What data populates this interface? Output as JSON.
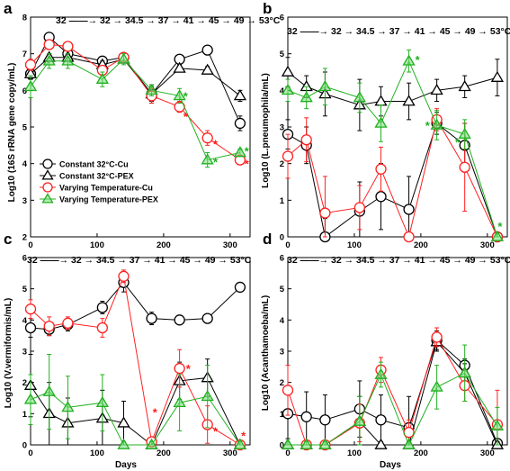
{
  "legend": [
    {
      "label": "Constant 32°C-Cu",
      "color": "#000000",
      "marker": "circle"
    },
    {
      "label": "Constant 32°C-PEX",
      "color": "#000000",
      "marker": "triangle"
    },
    {
      "label": "Varying Temperature-Cu",
      "color": "#ff2020",
      "marker": "circle"
    },
    {
      "label": "Varying Temperature-PEX",
      "color": "#20b020",
      "marker": "triangle"
    }
  ],
  "chart_data": [
    {
      "panel": "a",
      "type": "line",
      "ylabel": "Log10 (16S rRNA gene copy/mL)",
      "xlabel": "",
      "xticks": [
        0,
        100,
        200,
        300
      ],
      "yticks": [
        2,
        3,
        4,
        5,
        6,
        7,
        8
      ],
      "xlim": [
        0,
        330
      ],
      "ylim": [
        2,
        8
      ],
      "temperature_sequence": "32 ——→ 32 → 34.5 → 37 → 41 → 45 → 49 → 53°C",
      "series": [
        {
          "name": "Constant 32°C-Cu",
          "color": "#000000",
          "marker": "circle",
          "x": [
            0,
            28,
            56,
            108,
            140,
            182,
            224,
            266,
            315
          ],
          "y": [
            6.45,
            7.45,
            7.0,
            6.8,
            6.9,
            5.9,
            6.85,
            7.1,
            5.1
          ],
          "err": [
            0.15,
            0.1,
            0.15,
            0.1,
            0.1,
            0.25,
            0.1,
            0.1,
            0.2
          ]
        },
        {
          "name": "Constant 32°C-PEX",
          "color": "#000000",
          "marker": "triangle",
          "x": [
            0,
            28,
            56,
            108,
            140,
            182,
            224,
            266,
            315
          ],
          "y": [
            6.45,
            6.9,
            6.9,
            6.7,
            6.85,
            5.9,
            6.6,
            6.55,
            5.85
          ],
          "err": [
            0.1,
            0.1,
            0.1,
            0.1,
            0.1,
            0.2,
            0.1,
            0.1,
            0.15
          ]
        },
        {
          "name": "Varying Temperature-Cu",
          "color": "#ff2020",
          "marker": "circle",
          "x": [
            0,
            28,
            56,
            108,
            140,
            182,
            224,
            266,
            315
          ],
          "y": [
            6.7,
            7.25,
            7.2,
            6.55,
            6.9,
            5.85,
            5.55,
            4.7,
            4.1
          ],
          "err": [
            0.15,
            0.1,
            0.1,
            0.1,
            0.1,
            0.2,
            0.15,
            0.2,
            0.1
          ]
        },
        {
          "name": "Varying Temperature-PEX",
          "color": "#20b020",
          "marker": "triangle",
          "x": [
            0,
            28,
            56,
            108,
            140,
            182,
            224,
            266,
            315
          ],
          "y": [
            6.1,
            6.8,
            6.8,
            6.3,
            6.85,
            6.0,
            5.85,
            4.1,
            4.3
          ],
          "err": [
            0.3,
            0.2,
            0.2,
            0.2,
            0.15,
            0.15,
            0.2,
            0.2,
            0.1
          ]
        }
      ],
      "stars": [
        {
          "x": 233,
          "y": 5.85,
          "color": "#20b020"
        },
        {
          "x": 233,
          "y": 5.3,
          "color": "#ff2020"
        },
        {
          "x": 278,
          "y": 4.55,
          "color": "#ff2020"
        },
        {
          "x": 278,
          "y": 4.05,
          "color": "#20b020"
        },
        {
          "x": 325,
          "y": 4.35,
          "color": "#20b020"
        },
        {
          "x": 325,
          "y": 4.0,
          "color": "#ff2020"
        }
      ]
    },
    {
      "panel": "b",
      "type": "line",
      "ylabel": "Log10 (L.pneumophila/mL)",
      "xlabel": "",
      "xticks": [
        0,
        100,
        200,
        300
      ],
      "yticks": [
        0,
        1,
        2,
        3,
        4,
        5,
        6
      ],
      "xlim": [
        0,
        330
      ],
      "ylim": [
        0,
        6
      ],
      "temperature_sequence": "32 ——→ 32 → 34.5 → 37 → 41 → 45 → 49 → 53°C",
      "series": [
        {
          "name": "Constant 32°C-Cu",
          "color": "#000000",
          "marker": "circle",
          "x": [
            0,
            28,
            56,
            108,
            140,
            182,
            224,
            266,
            315
          ],
          "y": [
            2.8,
            2.5,
            0.0,
            0.7,
            1.1,
            0.75,
            3.1,
            2.5,
            0.0
          ],
          "err": [
            0.4,
            0.5,
            0.5,
            0.8,
            0.9,
            0.9,
            0.3,
            0.6,
            0.1
          ]
        },
        {
          "name": "Constant 32°C-PEX",
          "color": "#000000",
          "marker": "triangle",
          "x": [
            0,
            28,
            56,
            108,
            140,
            182,
            224,
            266,
            315
          ],
          "y": [
            4.5,
            4.1,
            3.9,
            3.6,
            3.7,
            3.7,
            4.0,
            4.1,
            4.35
          ],
          "err": [
            0.4,
            0.3,
            0.6,
            0.7,
            0.4,
            0.5,
            0.3,
            0.3,
            0.5
          ]
        },
        {
          "name": "Varying Temperature-Cu",
          "color": "#ff2020",
          "marker": "circle",
          "x": [
            0,
            28,
            56,
            108,
            140,
            182,
            224,
            266,
            315
          ],
          "y": [
            2.2,
            2.65,
            0.65,
            0.8,
            1.85,
            0.0,
            3.2,
            1.9,
            0.0
          ],
          "err": [
            0.6,
            0.6,
            1.0,
            0.6,
            0.6,
            0.1,
            0.3,
            1.2,
            0.1
          ]
        },
        {
          "name": "Varying Temperature-PEX",
          "color": "#20b020",
          "marker": "triangle",
          "x": [
            0,
            28,
            56,
            108,
            140,
            182,
            224,
            266,
            315
          ],
          "y": [
            4.0,
            3.8,
            4.1,
            3.8,
            3.1,
            4.8,
            3.05,
            2.8,
            0.0
          ],
          "err": [
            0.3,
            0.3,
            0.5,
            0.4,
            0.5,
            0.3,
            0.4,
            0.4,
            0.1
          ]
        }
      ],
      "stars": [
        {
          "x": 195,
          "y": 4.85,
          "color": "#20b020"
        },
        {
          "x": 210,
          "y": 3.05,
          "color": "#20b020"
        },
        {
          "x": 255,
          "y": 2.6,
          "color": "#20b020"
        },
        {
          "x": 319,
          "y": 0.3,
          "color": "#20b020"
        }
      ]
    },
    {
      "panel": "c",
      "type": "line",
      "ylabel": "Log10 (V.vermiformis/mL)",
      "xlabel": "Days",
      "xticks": [
        0,
        100,
        200,
        300
      ],
      "yticks": [
        0,
        1,
        2,
        3,
        4,
        5,
        6
      ],
      "xlim": [
        0,
        330
      ],
      "ylim": [
        0,
        6
      ],
      "temperature_sequence": "32 ——→ 32 → 34.5 → 37 → 41 → 45 → 49 → 53°C",
      "series": [
        {
          "name": "Constant 32°C-Cu",
          "color": "#000000",
          "marker": "circle",
          "x": [
            0,
            28,
            56,
            108,
            140,
            182,
            224,
            266,
            315
          ],
          "y": [
            3.75,
            3.7,
            3.85,
            4.4,
            5.2,
            4.05,
            4.0,
            4.05,
            5.05
          ],
          "err": [
            0.3,
            0.2,
            0.2,
            0.2,
            0.3,
            0.2,
            0.15,
            0.15,
            0.1
          ]
        },
        {
          "name": "Constant 32°C-PEX",
          "color": "#000000",
          "marker": "triangle",
          "x": [
            0,
            28,
            56,
            108,
            140,
            182,
            224,
            266,
            315
          ],
          "y": [
            1.9,
            1.0,
            0.7,
            0.85,
            0.7,
            0.0,
            2.05,
            2.15,
            0.0
          ],
          "err": [
            1.0,
            1.0,
            0.8,
            0.9,
            0.7,
            0.1,
            0.6,
            0.6,
            0.1
          ]
        },
        {
          "name": "Varying Temperature-Cu",
          "color": "#ff2020",
          "marker": "circle",
          "x": [
            0,
            28,
            56,
            108,
            140,
            182,
            224,
            266,
            315
          ],
          "y": [
            4.35,
            3.8,
            3.9,
            3.75,
            5.4,
            0.1,
            2.45,
            0.65,
            0.0
          ],
          "err": [
            0.3,
            0.3,
            0.2,
            0.3,
            0.2,
            0.1,
            0.6,
            0.6,
            0.1
          ]
        },
        {
          "name": "Varying Temperature-PEX",
          "color": "#20b020",
          "marker": "triangle",
          "x": [
            0,
            28,
            56,
            108,
            140,
            182,
            224,
            266,
            315
          ],
          "y": [
            1.45,
            1.7,
            1.2,
            1.35,
            0.0,
            0.0,
            1.35,
            1.55,
            0.0
          ],
          "err": [
            0.8,
            1.2,
            1.0,
            0.9,
            0.1,
            0.1,
            0.9,
            1.0,
            0.1
          ]
        }
      ],
      "stars": [
        {
          "x": 187,
          "y": 1.05,
          "color": "#ff2020"
        },
        {
          "x": 237,
          "y": 2.45,
          "color": "#ff2020"
        },
        {
          "x": 278,
          "y": 0.45,
          "color": "#ff2020"
        },
        {
          "x": 320,
          "y": 0.3,
          "color": "#ff2020"
        }
      ]
    },
    {
      "panel": "d",
      "type": "line",
      "ylabel": "Log10 (Acanthamoeba/mL)",
      "xlabel": "Days",
      "xticks": [
        0,
        100,
        200,
        300
      ],
      "yticks": [
        0,
        1,
        2,
        3,
        4,
        5,
        6
      ],
      "xlim": [
        0,
        330
      ],
      "ylim": [
        0,
        6
      ],
      "temperature_sequence": "32 ——→ 32 → 34.5 → 37 → 41 → 45 → 49 → 53°C",
      "series": [
        {
          "name": "Constant 32°C-Cu",
          "color": "#000000",
          "marker": "circle",
          "x": [
            0,
            28,
            56,
            108,
            140,
            182,
            224,
            266,
            315
          ],
          "y": [
            1.0,
            0.9,
            0.8,
            1.15,
            0.8,
            0.55,
            3.35,
            2.55,
            0.05
          ],
          "err": [
            0.8,
            0.8,
            0.8,
            0.9,
            0.8,
            1.0,
            0.3,
            0.2,
            0.1
          ]
        },
        {
          "name": "Constant 32°C-PEX",
          "color": "#000000",
          "marker": "triangle",
          "x": [
            0,
            28,
            56,
            108,
            140,
            182,
            224,
            266,
            315
          ],
          "y": [
            0.0,
            0.0,
            0.0,
            0.75,
            0.0,
            0.0,
            3.3,
            2.3,
            0.0
          ],
          "err": [
            0.1,
            0.1,
            0.1,
            0.8,
            0.1,
            0.1,
            0.3,
            0.3,
            0.1
          ]
        },
        {
          "name": "Varying Temperature-Cu",
          "color": "#ff2020",
          "marker": "circle",
          "x": [
            0,
            28,
            56,
            108,
            140,
            182,
            224,
            266,
            315
          ],
          "y": [
            1.75,
            0.0,
            0.0,
            0.7,
            2.4,
            0.4,
            3.45,
            1.9,
            0.65
          ],
          "err": [
            0.8,
            0.1,
            0.1,
            0.6,
            0.4,
            0.4,
            0.3,
            0.5,
            1.1
          ]
        },
        {
          "name": "Varying Temperature-PEX",
          "color": "#20b020",
          "marker": "triangle",
          "x": [
            0,
            28,
            56,
            108,
            140,
            182,
            224,
            266,
            315
          ],
          "y": [
            0.0,
            0.0,
            0.0,
            0.75,
            2.25,
            0.0,
            1.85,
            2.3,
            0.6
          ],
          "err": [
            0.1,
            0.1,
            0.1,
            0.8,
            0.4,
            0.1,
            0.7,
            0.9,
            0.6
          ]
        }
      ],
      "stars": []
    }
  ]
}
